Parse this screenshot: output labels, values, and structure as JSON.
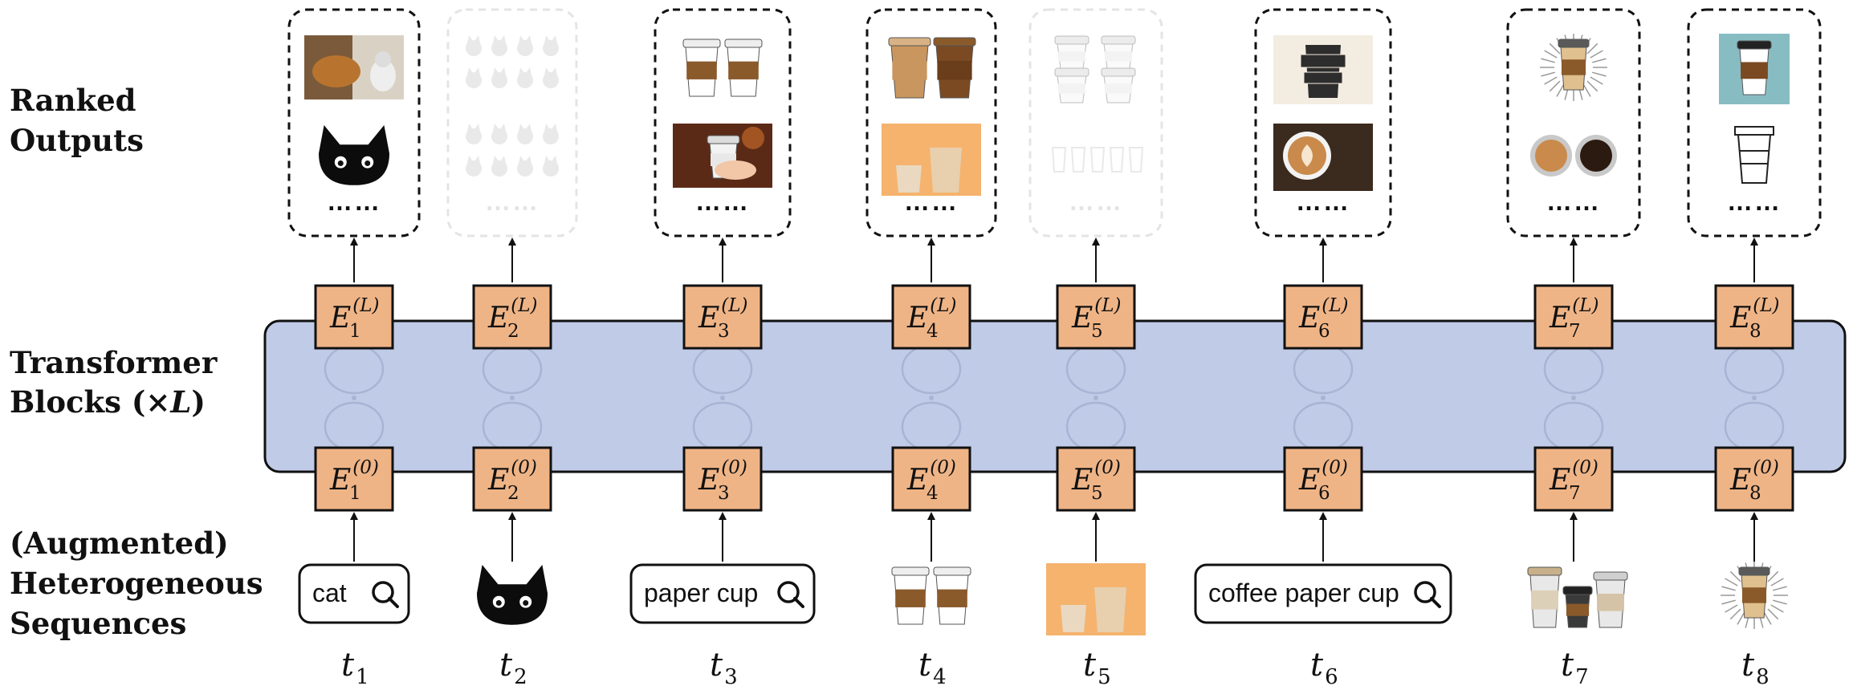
{
  "row_labels": {
    "outputs": [
      "Ranked",
      "Outputs"
    ],
    "transformer": [
      "Transformer",
      "Blocks (×",
      "L",
      ")"
    ],
    "sequence": [
      "(Augmented)",
      "Heterogeneous",
      "Sequences"
    ]
  },
  "embedding": {
    "letter": "E",
    "top_sup": "(L)",
    "bottom_sup": "(0)"
  },
  "ellipsis": "……",
  "timestep_letter": "t",
  "columns": [
    {
      "index": "1",
      "input": {
        "kind": "query",
        "text": "cat"
      },
      "output": {
        "faded": false,
        "thumbs": [
          "dog-and-cat-photo",
          "black-cat-peeking"
        ]
      }
    },
    {
      "index": "2",
      "input": {
        "kind": "image",
        "image": "black-cat-peeking"
      },
      "output": {
        "faded": true,
        "thumbs": [
          "cat-silhouettes-grid",
          "cat-silhouettes-sheet"
        ]
      }
    },
    {
      "index": "3",
      "input": {
        "kind": "query",
        "text": "paper cup"
      },
      "output": {
        "faded": false,
        "thumbs": [
          "two-coffee-cups",
          "hands-holding-cup"
        ]
      }
    },
    {
      "index": "4",
      "input": {
        "kind": "image",
        "image": "two-coffee-cups"
      },
      "output": {
        "faded": false,
        "thumbs": [
          "kraft-cups-pair",
          "cup-illustration"
        ]
      }
    },
    {
      "index": "5",
      "input": {
        "kind": "image",
        "image": "cup-illustration"
      },
      "output": {
        "faded": true,
        "thumbs": [
          "cup-mockups",
          "cup-outline-set"
        ]
      }
    },
    {
      "index": "6",
      "input": {
        "kind": "query",
        "text": "coffee paper cup"
      },
      "output": {
        "faded": false,
        "thumbs": [
          "coffee-to-go-poster",
          "latte-art-cup"
        ]
      }
    },
    {
      "index": "7",
      "input": {
        "kind": "image",
        "image": "three-takeaway-cups"
      },
      "output": {
        "faded": false,
        "thumbs": [
          "sunburst-coffee-cup",
          "latte-cups-top"
        ]
      }
    },
    {
      "index": "8",
      "input": {
        "kind": "image",
        "image": "sunburst-coffee-cup"
      },
      "output": {
        "faded": false,
        "thumbs": [
          "cup-on-teal",
          "cup-line-icon"
        ]
      }
    }
  ],
  "colors": {
    "block_fill": "#bfcbe7",
    "node_fill": "#efb486",
    "stroke": "#111111",
    "faded_stroke": "#b9b9b9",
    "ellipse": "#a8b4d4"
  }
}
